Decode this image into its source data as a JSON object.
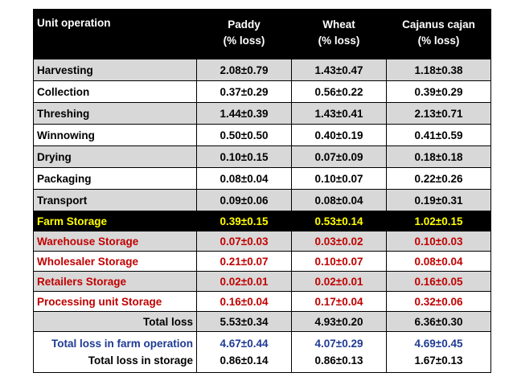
{
  "table": {
    "headers": {
      "col0": "Unit operation",
      "col1_line1": "Paddy",
      "col1_line2": "(% loss)",
      "col2_line1": "Wheat",
      "col2_line2": "(% loss)",
      "col3_line1": "Cajanus cajan",
      "col3_line2": "(% loss)"
    },
    "rows": [
      {
        "label": "Harvesting",
        "paddy": "2.08±0.79",
        "wheat": "1.43±0.47",
        "cajanus": "1.18±0.38"
      },
      {
        "label": "Collection",
        "paddy": "0.37±0.29",
        "wheat": "0.56±0.22",
        "cajanus": "0.39±0.29"
      },
      {
        "label": "Threshing",
        "paddy": "1.44±0.39",
        "wheat": "1.43±0.41",
        "cajanus": "2.13±0.71"
      },
      {
        "label": "Winnowing",
        "paddy": "0.50±0.50",
        "wheat": "0.40±0.19",
        "cajanus": "0.41±0.59"
      },
      {
        "label": "Drying",
        "paddy": "0.10±0.15",
        "wheat": "0.07±0.09",
        "cajanus": "0.18±0.18"
      },
      {
        "label": "Packaging",
        "paddy": "0.08±0.04",
        "wheat": "0.10±0.07",
        "cajanus": "0.22±0.26"
      },
      {
        "label": "Transport",
        "paddy": "0.09±0.06",
        "wheat": "0.08±0.04",
        "cajanus": "0.19±0.31"
      },
      {
        "label": "Farm Storage",
        "paddy": "0.39±0.15",
        "wheat": "0.53±0.14",
        "cajanus": "1.02±0.15"
      },
      {
        "label": "Warehouse Storage",
        "paddy": "0.07±0.03",
        "wheat": "0.03±0.02",
        "cajanus": "0.10±0.03"
      },
      {
        "label": "Wholesaler Storage",
        "paddy": "0.21±0.07",
        "wheat": "0.10±0.07",
        "cajanus": "0.08±0.04"
      },
      {
        "label": "Retailers  Storage",
        "paddy": "0.02±0.01",
        "wheat": "0.02±0.01",
        "cajanus": "0.16±0.05"
      },
      {
        "label": "Processing unit Storage",
        "paddy": "0.16±0.04",
        "wheat": "0.17±0.04",
        "cajanus": "0.32±0.06"
      },
      {
        "label": "Total loss",
        "paddy": "5.53±0.34",
        "wheat": "4.93±0.20",
        "cajanus": "6.36±0.30"
      }
    ],
    "final": {
      "farm_label": "Total loss in farm operation",
      "storage_label": "Total loss in storage",
      "paddy_farm": "4.67±0.44",
      "paddy_storage": "0.86±0.14",
      "wheat_farm": "4.07±0.29",
      "wheat_storage": "0.86±0.13",
      "cajanus_farm": "4.69±0.45",
      "cajanus_storage": "1.67±0.13"
    }
  },
  "colors": {
    "farm_storage_text": "#ffff00",
    "storage_text": "#c00000",
    "farm_total_text": "#1f3a93",
    "row_grey": "#d8d8d8"
  }
}
